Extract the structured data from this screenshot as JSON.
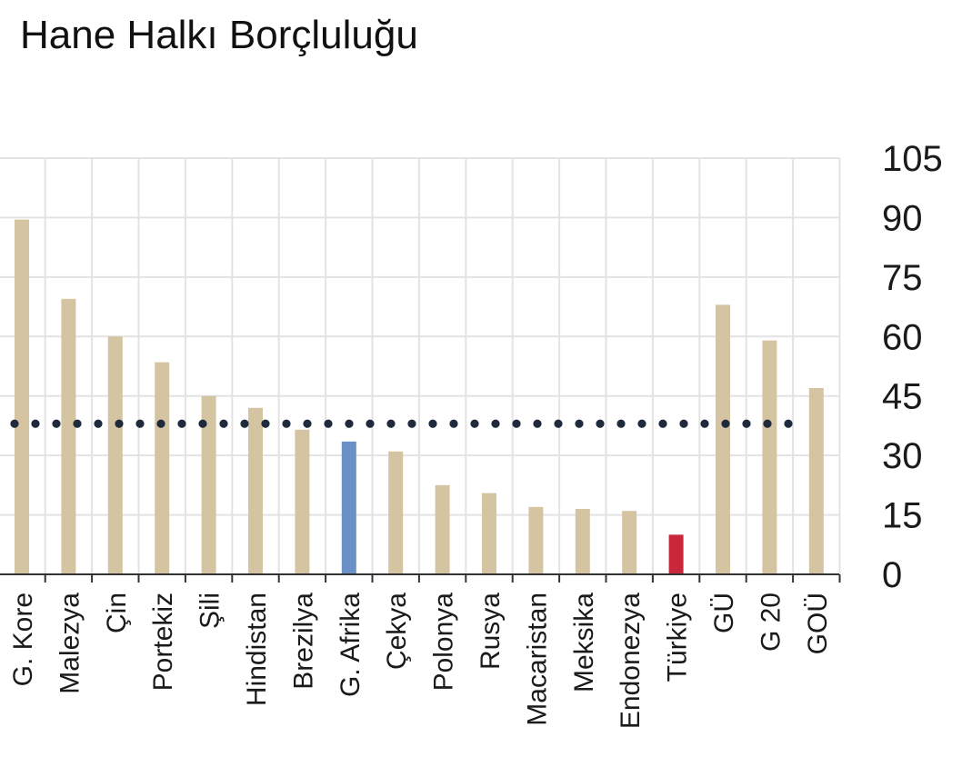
{
  "title": "Hane Halkı Borçluluğu",
  "chart_data": {
    "type": "bar",
    "title": "Hane Halkı Borçluluğu",
    "xlabel": "",
    "ylabel": "",
    "ylim": [
      0,
      105
    ],
    "yticks": [
      0,
      15,
      30,
      45,
      60,
      75,
      90,
      105
    ],
    "y_axis_side": "right",
    "grid": true,
    "categories": [
      "G. Kore",
      "Malezya",
      "Çin",
      "Portekiz",
      "Şili",
      "Hindistan",
      "Brezilya",
      "G. Afrika",
      "Çekya",
      "Polonya",
      "Rusya",
      "Macaristan",
      "Meksika",
      "Endonezya",
      "Türkiye",
      "GÜ",
      "G 20",
      "GOÜ"
    ],
    "values": [
      89.5,
      69.5,
      60,
      53.5,
      45,
      42,
      36.5,
      33.5,
      31,
      22.5,
      20.5,
      17,
      16.5,
      16,
      10,
      68,
      59,
      47
    ],
    "bar_colors": [
      "#d4c4a2",
      "#d4c4a2",
      "#d4c4a2",
      "#d4c4a2",
      "#d4c4a2",
      "#d4c4a2",
      "#d4c4a2",
      "#6b8fc7",
      "#d4c4a2",
      "#d4c4a2",
      "#d4c4a2",
      "#d4c4a2",
      "#d4c4a2",
      "#d4c4a2",
      "#c8283a",
      "#d4c4a2",
      "#d4c4a2",
      "#d4c4a2"
    ],
    "reference_line": {
      "value": 38,
      "style": "dotted",
      "color": "#1f2a3c"
    }
  }
}
